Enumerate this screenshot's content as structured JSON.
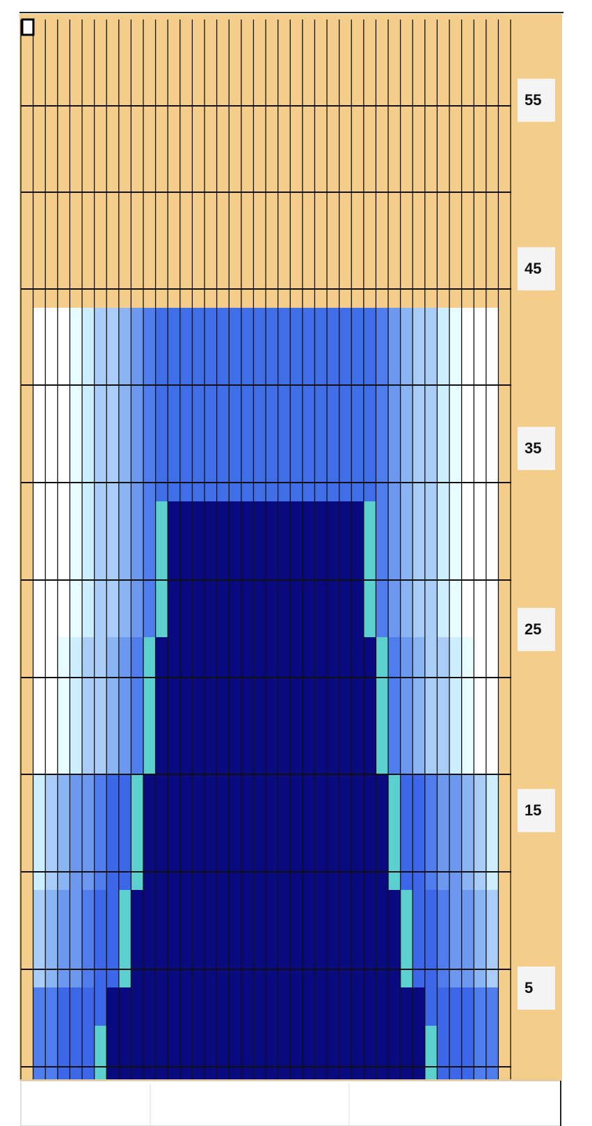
{
  "row_numbers": [
    55,
    45,
    35,
    25,
    15,
    5
  ]
}
